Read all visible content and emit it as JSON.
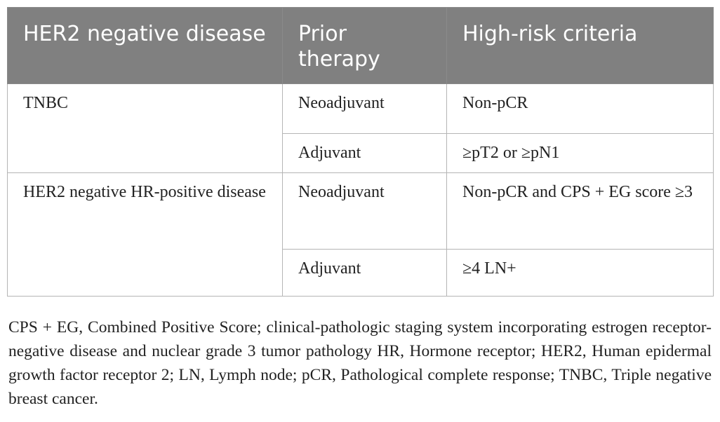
{
  "table": {
    "headers": [
      "HER2 negative disease",
      "Prior therapy",
      "High-risk criteria"
    ],
    "groups": [
      {
        "disease": "TNBC",
        "rows": [
          {
            "therapy": "Neoadjuvant",
            "criteria": "Non-pCR"
          },
          {
            "therapy": "Adjuvant",
            "criteria": "≥pT2 or ≥pN1"
          }
        ]
      },
      {
        "disease": "HER2 negative HR-positive disease",
        "rows": [
          {
            "therapy": "Neoadjuvant",
            "criteria": "Non-pCR and CPS + EG score ≥3"
          },
          {
            "therapy": "Adjuvant",
            "criteria": "≥4 LN+"
          }
        ]
      }
    ]
  },
  "footnote": "CPS + EG, Combined Positive Score; clinical-pathologic staging system incorporating estrogen receptor-negative disease and nuclear grade 3 tumor pathology HR, Hormone receptor; HER2, Human epidermal growth factor receptor 2; LN, Lymph node; pCR, Pathological complete response; TNBC, Triple negative breast cancer."
}
